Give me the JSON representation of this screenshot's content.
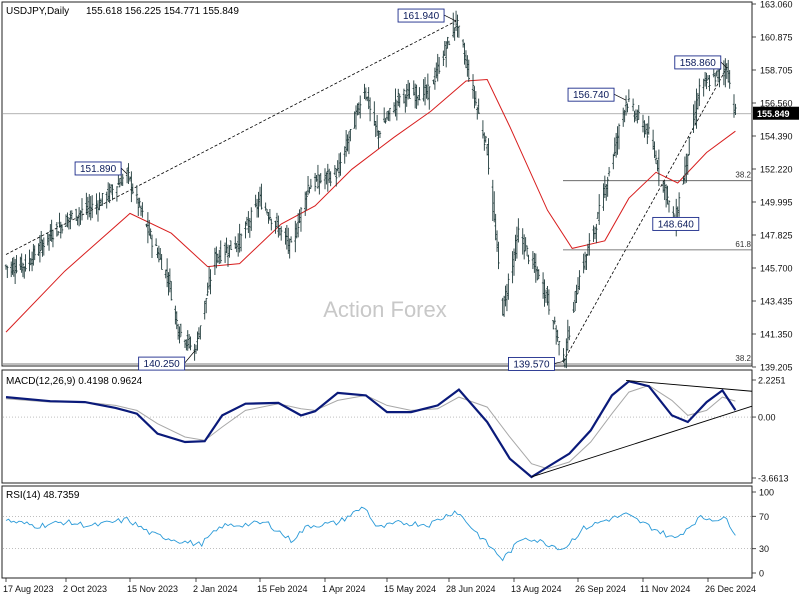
{
  "header": {
    "symbol_timeframe": "USDJPY,Daily",
    "ohlc": "155.618 156.225 154.771 155.849"
  },
  "watermark": "Action Forex",
  "price_panel": {
    "ylim": [
      139.205,
      163.06
    ],
    "y_ticks": [
      "163.060",
      "160.875",
      "158.705",
      "156.560",
      "154.390",
      "152.220",
      "149.995",
      "147.825",
      "145.700",
      "143.435",
      "141.350",
      "139.205"
    ],
    "current_price": "155.849",
    "current_price_value": 155.849,
    "annotations": [
      {
        "label": "161.940",
        "value": 161.94,
        "date": "2024-07-03"
      },
      {
        "label": "151.890",
        "value": 151.89,
        "date": "2023-11-13"
      },
      {
        "label": "140.250",
        "value": 140.25,
        "date": "2024-01-01"
      },
      {
        "label": "139.570",
        "value": 139.57,
        "date": "2024-09-16"
      },
      {
        "label": "156.740",
        "value": 156.74,
        "date": "2024-10-30"
      },
      {
        "label": "148.640",
        "value": 148.64,
        "date": "2024-12-03"
      },
      {
        "label": "158.860",
        "value": 158.86,
        "date": "2025-01-08"
      }
    ],
    "fib_levels": [
      {
        "label": "38.2",
        "value": 151.45
      },
      {
        "label": "61.8",
        "value": 146.9
      },
      {
        "label": "38.2",
        "value": 139.4
      }
    ]
  },
  "macd_panel": {
    "title": "MACD(12,26,9) 0.4198 0.9624",
    "ylim": [
      -3.6613,
      2.2251
    ],
    "y_ticks": [
      "2.2251",
      "0.00",
      "-3.6613"
    ]
  },
  "rsi_panel": {
    "title": "RSI(14) 48.7359",
    "ylim": [
      0,
      100
    ],
    "y_ticks": [
      "100",
      "70",
      "30",
      "0"
    ]
  },
  "x_axis": {
    "labels": [
      {
        "label": "17 Aug 2023",
        "date": "2023-08-17"
      },
      {
        "label": "2 Oct 2023",
        "date": "2023-10-02"
      },
      {
        "label": "15 Nov 2023",
        "date": "2023-11-15"
      },
      {
        "label": "2 Jan 2024",
        "date": "2024-01-02"
      },
      {
        "label": "15 Feb 2024",
        "date": "2024-02-15"
      },
      {
        "label": "1 Apr 2024",
        "date": "2024-04-01"
      },
      {
        "label": "15 May 2024",
        "date": "2024-05-15"
      },
      {
        "label": "28 Jun 2024",
        "date": "2024-06-28"
      },
      {
        "label": "13 Aug 2024",
        "date": "2024-08-13"
      },
      {
        "label": "26 Sep 2024",
        "date": "2024-09-26"
      },
      {
        "label": "11 Nov 2024",
        "date": "2024-11-11"
      },
      {
        "label": "26 Dec 2024",
        "date": "2024-12-26"
      }
    ]
  },
  "colors": {
    "price_bars": "#1f3a3a",
    "moving_average": "#d81e1e",
    "macd_line": "#0a1a7a",
    "signal_line": "#a8a8a8",
    "levels": "#555555",
    "label_border": "#1a2a8a",
    "grid_dotted": "#999999"
  },
  "chart_data": [
    {
      "type": "ohlc",
      "panel": "price",
      "series": [
        {
          "role": "price",
          "points": [
            [
              "2023-08-17",
              145.8
            ],
            [
              "2023-09-01",
              145.9
            ],
            [
              "2023-09-20",
              147.9
            ],
            [
              "2023-10-04",
              149.0
            ],
            [
              "2023-10-25",
              150.0
            ],
            [
              "2023-11-13",
              151.89
            ],
            [
              "2023-11-27",
              148.4
            ],
            [
              "2023-12-13",
              145.0
            ],
            [
              "2023-12-20",
              141.7
            ],
            [
              "2024-01-01",
              140.25
            ],
            [
              "2024-01-15",
              146.4
            ],
            [
              "2024-02-01",
              147.5
            ],
            [
              "2024-02-15",
              150.2
            ],
            [
              "2024-03-08",
              147.0
            ],
            [
              "2024-03-20",
              151.1
            ],
            [
              "2024-04-10",
              152.0
            ],
            [
              "2024-04-29",
              157.5
            ],
            [
              "2024-05-08",
              154.5
            ],
            [
              "2024-05-24",
              157.0
            ],
            [
              "2024-06-14",
              157.3
            ],
            [
              "2024-07-03",
              161.94
            ],
            [
              "2024-07-25",
              153.5
            ],
            [
              "2024-08-05",
              143.0
            ],
            [
              "2024-08-16",
              148.0
            ],
            [
              "2024-09-04",
              144.0
            ],
            [
              "2024-09-16",
              139.57
            ],
            [
              "2024-09-26",
              144.8
            ],
            [
              "2024-10-10",
              149.0
            ],
            [
              "2024-10-30",
              156.74
            ],
            [
              "2024-11-15",
              154.5
            ],
            [
              "2024-12-03",
              148.64
            ],
            [
              "2024-12-20",
              157.5
            ],
            [
              "2025-01-08",
              158.86
            ],
            [
              "2025-01-14",
              155.849
            ]
          ]
        },
        {
          "name": "",
          "role": "moving_average",
          "points": [
            [
              "2023-08-17",
              141.5
            ],
            [
              "2023-10-01",
              145.5
            ],
            [
              "2023-11-15",
              149.3
            ],
            [
              "2023-12-15",
              148.0
            ],
            [
              "2024-01-10",
              145.8
            ],
            [
              "2024-02-01",
              146.0
            ],
            [
              "2024-03-01",
              148.6
            ],
            [
              "2024-03-25",
              149.8
            ],
            [
              "2024-04-20",
              152.2
            ],
            [
              "2024-05-20",
              154.3
            ],
            [
              "2024-06-15",
              156.0
            ],
            [
              "2024-07-10",
              158.0
            ],
            [
              "2024-07-25",
              158.1
            ],
            [
              "2024-08-10",
              155.0
            ],
            [
              "2024-09-05",
              149.5
            ],
            [
              "2024-09-22",
              147.0
            ],
            [
              "2024-10-15",
              147.5
            ],
            [
              "2024-11-01",
              150.3
            ],
            [
              "2024-11-20",
              152.0
            ],
            [
              "2024-12-05",
              151.3
            ],
            [
              "2024-12-25",
              153.3
            ],
            [
              "2025-01-14",
              154.7
            ]
          ]
        }
      ]
    },
    {
      "type": "line",
      "panel": "macd",
      "series": [
        {
          "role": "macd_line",
          "points": [
            [
              "2023-08-17",
              1.2
            ],
            [
              "2023-09-20",
              0.95
            ],
            [
              "2023-10-15",
              0.9
            ],
            [
              "2023-11-05",
              0.55
            ],
            [
              "2023-11-20",
              0.2
            ],
            [
              "2023-12-05",
              -1.0
            ],
            [
              "2023-12-25",
              -1.5
            ],
            [
              "2024-01-08",
              -1.45
            ],
            [
              "2024-01-20",
              0.1
            ],
            [
              "2024-02-05",
              0.8
            ],
            [
              "2024-02-28",
              0.85
            ],
            [
              "2024-03-15",
              0.1
            ],
            [
              "2024-03-25",
              0.35
            ],
            [
              "2024-04-10",
              1.45
            ],
            [
              "2024-04-30",
              1.3
            ],
            [
              "2024-05-15",
              0.3
            ],
            [
              "2024-06-01",
              0.3
            ],
            [
              "2024-06-20",
              0.7
            ],
            [
              "2024-07-05",
              1.65
            ],
            [
              "2024-07-25",
              -0.3
            ],
            [
              "2024-08-10",
              -2.5
            ],
            [
              "2024-08-25",
              -3.6
            ],
            [
              "2024-09-05",
              -3.0
            ],
            [
              "2024-09-20",
              -2.2
            ],
            [
              "2024-10-05",
              -0.8
            ],
            [
              "2024-10-20",
              1.3
            ],
            [
              "2024-11-01",
              2.15
            ],
            [
              "2024-11-15",
              1.85
            ],
            [
              "2024-12-01",
              0.1
            ],
            [
              "2024-12-12",
              -0.3
            ],
            [
              "2024-12-25",
              0.9
            ],
            [
              "2025-01-05",
              1.6
            ],
            [
              "2025-01-14",
              0.42
            ]
          ]
        },
        {
          "role": "signal_line",
          "points": [
            [
              "2023-08-17",
              1.1
            ],
            [
              "2023-09-20",
              0.9
            ],
            [
              "2023-10-15",
              0.9
            ],
            [
              "2023-11-05",
              0.7
            ],
            [
              "2023-11-20",
              0.4
            ],
            [
              "2023-12-05",
              -0.4
            ],
            [
              "2023-12-25",
              -1.2
            ],
            [
              "2024-01-08",
              -1.4
            ],
            [
              "2024-01-20",
              -0.6
            ],
            [
              "2024-02-05",
              0.4
            ],
            [
              "2024-02-28",
              0.8
            ],
            [
              "2024-03-15",
              0.5
            ],
            [
              "2024-03-25",
              0.4
            ],
            [
              "2024-04-10",
              1.0
            ],
            [
              "2024-04-30",
              1.3
            ],
            [
              "2024-05-15",
              0.7
            ],
            [
              "2024-06-01",
              0.4
            ],
            [
              "2024-06-20",
              0.5
            ],
            [
              "2024-07-05",
              1.2
            ],
            [
              "2024-07-25",
              0.6
            ],
            [
              "2024-08-10",
              -1.2
            ],
            [
              "2024-08-25",
              -2.8
            ],
            [
              "2024-09-05",
              -3.1
            ],
            [
              "2024-09-20",
              -2.7
            ],
            [
              "2024-10-05",
              -1.5
            ],
            [
              "2024-10-20",
              0.2
            ],
            [
              "2024-11-01",
              1.5
            ],
            [
              "2024-11-15",
              1.9
            ],
            [
              "2024-12-01",
              1.0
            ],
            [
              "2024-12-12",
              0.1
            ],
            [
              "2024-12-25",
              0.4
            ],
            [
              "2025-01-05",
              1.2
            ],
            [
              "2025-01-14",
              0.96
            ]
          ]
        }
      ]
    },
    {
      "type": "line",
      "panel": "rsi",
      "series": [
        {
          "role": "rsi",
          "points": [
            [
              "2023-08-17",
              65
            ],
            [
              "2023-09-10",
              58
            ],
            [
              "2023-10-01",
              63
            ],
            [
              "2023-10-20",
              58
            ],
            [
              "2023-11-13",
              66
            ],
            [
              "2023-12-01",
              48
            ],
            [
              "2023-12-20",
              40
            ],
            [
              "2024-01-05",
              35
            ],
            [
              "2024-01-20",
              58
            ],
            [
              "2024-02-05",
              60
            ],
            [
              "2024-02-20",
              62
            ],
            [
              "2024-03-08",
              40
            ],
            [
              "2024-03-20",
              58
            ],
            [
              "2024-04-10",
              62
            ],
            [
              "2024-04-29",
              82
            ],
            [
              "2024-05-08",
              55
            ],
            [
              "2024-05-24",
              62
            ],
            [
              "2024-06-14",
              60
            ],
            [
              "2024-07-03",
              77
            ],
            [
              "2024-07-20",
              45
            ],
            [
              "2024-08-05",
              17
            ],
            [
              "2024-08-20",
              45
            ],
            [
              "2024-09-05",
              36
            ],
            [
              "2024-09-16",
              30
            ],
            [
              "2024-09-30",
              55
            ],
            [
              "2024-10-15",
              65
            ],
            [
              "2024-10-30",
              72
            ],
            [
              "2024-11-15",
              58
            ],
            [
              "2024-12-03",
              42
            ],
            [
              "2024-12-20",
              68
            ],
            [
              "2025-01-08",
              66
            ],
            [
              "2025-01-14",
              49
            ]
          ]
        }
      ]
    }
  ]
}
